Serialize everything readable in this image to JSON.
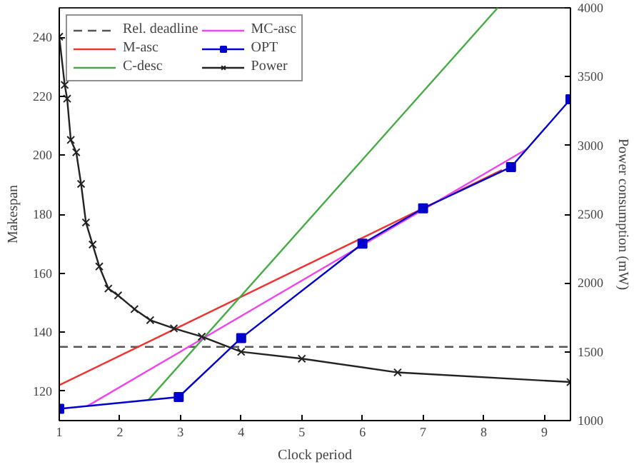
{
  "chart_data": {
    "type": "line",
    "xlabel": "Clock period",
    "ylabel": "Makespan",
    "y2label": "Power consumption (mW)",
    "xlim": [
      1,
      9.43
    ],
    "ylim": [
      110,
      250
    ],
    "y2lim": [
      1000,
      4000
    ],
    "xticks": [
      1,
      2,
      3,
      4,
      5,
      6,
      7,
      8,
      9
    ],
    "yticks": [
      120,
      140,
      160,
      180,
      200,
      220,
      240
    ],
    "y2ticks": [
      1000,
      1500,
      2000,
      2500,
      3000,
      3500,
      4000
    ],
    "grid": false,
    "legend": "top left",
    "ref_lines": [
      {
        "axis": "y",
        "value": 135,
        "label": "Rel. deadline",
        "color": "#555555",
        "line_style": "dashed"
      }
    ],
    "series": [
      {
        "name": "M-asc",
        "color": "#ee3333",
        "marker": "none",
        "x": [
          1,
          8.3
        ],
        "values": [
          122,
          195
        ]
      },
      {
        "name": "C-desc",
        "color": "#44aa44",
        "marker": "none",
        "x": [
          2.47,
          8.23
        ],
        "values": [
          117,
          250
        ]
      },
      {
        "name": "MC-asc",
        "color": "#ee44ee",
        "marker": "none",
        "x": [
          1.47,
          8.7
        ],
        "values": [
          115,
          202
        ]
      },
      {
        "name": "OPT",
        "color": "#0000cc",
        "marker": "square",
        "x": [
          1,
          2.97,
          4,
          6,
          7,
          8.45,
          9.43
        ],
        "values": [
          114,
          118,
          138,
          170,
          182,
          196,
          219
        ]
      },
      {
        "name": "Power",
        "color": "#222222",
        "marker": "cross",
        "axis": "y2",
        "x": [
          1,
          1.09,
          1.13,
          1.19,
          1.28,
          1.36,
          1.44,
          1.55,
          1.66,
          1.81,
          1.97,
          2.24,
          2.5,
          2.89,
          3.35,
          4,
          5,
          6.58,
          9.43
        ],
        "values": [
          3790,
          3440,
          3340,
          3040,
          2950,
          2720,
          2440,
          2280,
          2120,
          1960,
          1910,
          1810,
          1730,
          1670,
          1610,
          1500,
          1450,
          1350,
          1280
        ]
      }
    ]
  }
}
